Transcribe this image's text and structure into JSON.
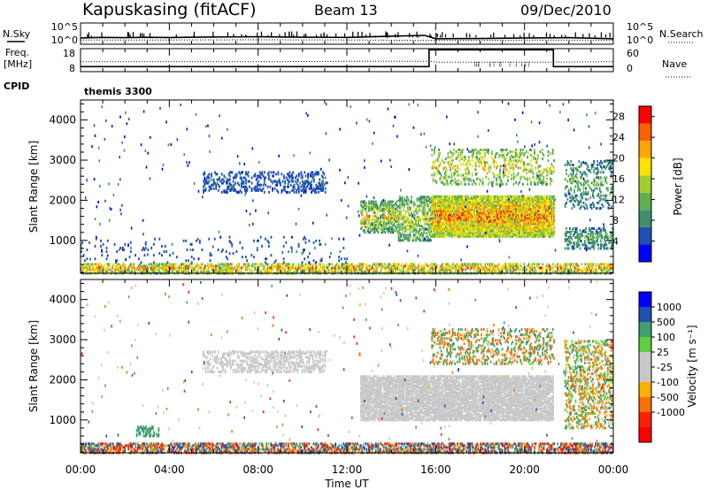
{
  "header": {
    "station": "Kapuskasing (fitACF)",
    "beam": "Beam 13",
    "date": "09/Dec/2010"
  },
  "side_labels": {
    "n_sky": "N.Sky",
    "n_search": "N.Search",
    "freq_line1": "Freq.",
    "freq_line2": "[MHz]",
    "nave": "Nave",
    "cpid": "CPID",
    "cpid_value": "themis 3300"
  },
  "colors": {
    "axis": "#000000",
    "scatter_gray": "#c8c8c8",
    "power_scale": [
      "#0000ff",
      "#1f4fb0",
      "#3f8f6f",
      "#5faf4f",
      "#9fcf2f",
      "#ffe000",
      "#ffa500",
      "#ff6000",
      "#ff0000"
    ],
    "velocity_scale": [
      "#0000ff",
      "#2050b0",
      "#3f9f6f",
      "#5fcf3f",
      "#c8c8c8",
      "#c8c8c8",
      "#ffb000",
      "#ff7000",
      "#ff2000",
      "#ff0000"
    ]
  },
  "chart_data": [
    {
      "type": "line",
      "id": "noise_panel",
      "series": [
        {
          "name": "N.Sky",
          "style": "solid",
          "x": [
            0,
            0.5,
            1,
            2,
            3,
            4,
            6,
            8,
            10,
            12,
            14,
            15.5,
            16,
            18,
            20,
            22,
            24
          ],
          "values": [
            30,
            35,
            40,
            35,
            42,
            38,
            50,
            55,
            45,
            40,
            80,
            120,
            20,
            22,
            30,
            35,
            20
          ]
        },
        {
          "name": "N.Search",
          "style": "dotted",
          "x": [
            0,
            4,
            8,
            12,
            16,
            20,
            24
          ],
          "values": [
            10,
            10,
            11,
            10,
            8,
            9,
            9
          ]
        }
      ],
      "ylim": [
        1,
        100000
      ],
      "yticks_left": [
        "10^5",
        "10^0"
      ],
      "yticks_right": [
        "10^5",
        "10^0"
      ],
      "scale": "log"
    },
    {
      "type": "line",
      "id": "freq_panel",
      "series": [
        {
          "name": "Freq.",
          "style": "solid",
          "x": [
            0,
            15.7,
            15.7,
            21.3,
            21.3,
            24
          ],
          "values": [
            10.2,
            10.2,
            17.5,
            17.5,
            10.2,
            10.2
          ]
        },
        {
          "name": "Nave",
          "style": "dotted",
          "x": [
            0,
            4,
            8,
            12,
            15.7,
            16,
            20,
            21.3,
            24
          ],
          "values": [
            26,
            26,
            26,
            27,
            27,
            25,
            25,
            25,
            26
          ]
        }
      ],
      "ylim_left": [
        8,
        18
      ],
      "yticks_left": [
        18,
        8
      ],
      "ylim_right": [
        0,
        60
      ],
      "yticks_right": [
        60,
        0
      ]
    },
    {
      "type": "heatmap",
      "id": "power_panel",
      "ylabel": "Slant Range [km]",
      "xlim": [
        0,
        24
      ],
      "ylim": [
        180,
        4500
      ],
      "yticks": [
        1000,
        2000,
        3000,
        4000
      ],
      "xticks": [
        "00:00",
        "04:00",
        "08:00",
        "12:00",
        "16:00",
        "20:00",
        "00:00"
      ],
      "colorbar": {
        "label": "Power [dB]",
        "ticks": [
          4,
          8,
          12,
          16,
          20,
          24,
          28
        ],
        "range": [
          0,
          30
        ]
      },
      "regions": [
        {
          "t": [
            0,
            24
          ],
          "r": [
            180,
            450
          ],
          "v": [
            2,
            30
          ],
          "density": 0.55
        },
        {
          "t": [
            0,
            12
          ],
          "r": [
            450,
            1100
          ],
          "v": [
            2,
            8
          ],
          "density": 0.05
        },
        {
          "t": [
            5.5,
            11
          ],
          "r": [
            2200,
            2700
          ],
          "v": [
            2,
            8
          ],
          "density": 0.3
        },
        {
          "t": [
            12.6,
            14.3
          ],
          "r": [
            1200,
            2000
          ],
          "v": [
            2,
            24
          ],
          "density": 0.55
        },
        {
          "t": [
            14.3,
            15.8
          ],
          "r": [
            1000,
            2100
          ],
          "v": [
            4,
            20
          ],
          "density": 0.45
        },
        {
          "t": [
            15.8,
            21.3
          ],
          "r": [
            1100,
            2100
          ],
          "v": [
            6,
            30
          ],
          "density": 0.85
        },
        {
          "t": [
            15.8,
            21.3
          ],
          "r": [
            2400,
            3300
          ],
          "v": [
            4,
            24
          ],
          "density": 0.25
        },
        {
          "t": [
            21.8,
            24
          ],
          "r": [
            800,
            1300
          ],
          "v": [
            2,
            16
          ],
          "density": 0.45
        },
        {
          "t": [
            21.8,
            24
          ],
          "r": [
            1800,
            3000
          ],
          "v": [
            2,
            16
          ],
          "density": 0.25
        }
      ]
    },
    {
      "type": "heatmap",
      "id": "velocity_panel",
      "ylabel": "Slant Range [km]",
      "xlabel": "Time UT",
      "xlim": [
        0,
        24
      ],
      "ylim": [
        180,
        4500
      ],
      "yticks": [
        1000,
        2000,
        3000,
        4000
      ],
      "xticks": [
        "00:00",
        "04:00",
        "08:00",
        "12:00",
        "16:00",
        "20:00",
        "00:00"
      ],
      "colorbar": {
        "label": "Velocity [m s⁻¹]",
        "ticks": [
          "1000",
          "500",
          "100",
          "25",
          "-25",
          "-100",
          "-500",
          "-1000"
        ],
        "range": [
          -1500,
          1500
        ]
      },
      "regions": [
        {
          "t": [
            0,
            24
          ],
          "r": [
            180,
            450
          ],
          "v": [
            -1000,
            1000
          ],
          "density": 0.55
        },
        {
          "t": [
            2.5,
            3.5
          ],
          "r": [
            600,
            850
          ],
          "v": [
            100,
            500
          ],
          "density": 0.4
        },
        {
          "t": [
            5.5,
            11
          ],
          "r": [
            2200,
            2700
          ],
          "v": [
            -20,
            20
          ],
          "density": 0.4
        },
        {
          "t": [
            12.6,
            21.3
          ],
          "r": [
            1000,
            2100
          ],
          "v": [
            -20,
            20
          ],
          "density": 0.8
        },
        {
          "t": [
            15.8,
            21.3
          ],
          "r": [
            2400,
            3300
          ],
          "v": [
            -500,
            500
          ],
          "density": 0.25
        },
        {
          "t": [
            21.8,
            24
          ],
          "r": [
            800,
            3000
          ],
          "v": [
            -200,
            200
          ],
          "density": 0.35
        }
      ]
    }
  ]
}
